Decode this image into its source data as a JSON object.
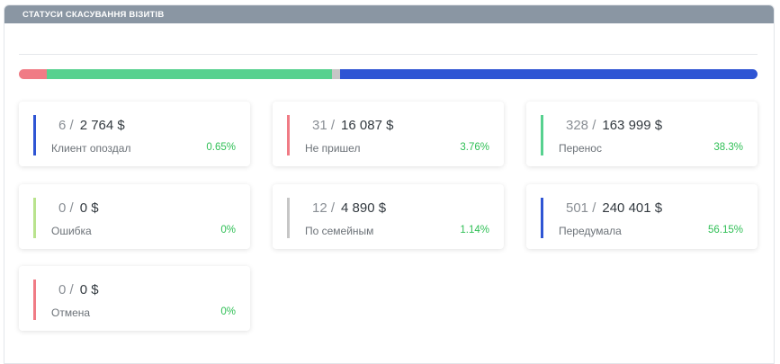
{
  "panel": {
    "title": "СТАТУСИ СКАСУВАННЯ ВІЗИТІВ"
  },
  "distribution_bar": [
    {
      "name": "Не пришел",
      "share": 3.76,
      "color": "#f07b85"
    },
    {
      "name": "Перенос",
      "share": 38.3,
      "color": "#57d18f"
    },
    {
      "name": "По семейным",
      "share": 1.14,
      "color": "#c6c6c6"
    },
    {
      "name": "Передумала",
      "share": 56.15,
      "color": "#2f55d4"
    },
    {
      "name": "Клиент опоздал",
      "share": 0.65,
      "color": "#2f55d4"
    }
  ],
  "cards": [
    {
      "count": "6 /",
      "amount": "2 764 $",
      "label": "Клиент опоздал",
      "pct": "0.65%",
      "color": "#2f55d4"
    },
    {
      "count": "31 /",
      "amount": "16 087 $",
      "label": "Не пришел",
      "pct": "3.76%",
      "color": "#f07b85"
    },
    {
      "count": "328 /",
      "amount": "163 999 $",
      "label": "Перенос",
      "pct": "38.3%",
      "color": "#57d18f"
    },
    {
      "count": "0 /",
      "amount": "0 $",
      "label": "Ошибка",
      "pct": "0%",
      "color": "#b9e38d"
    },
    {
      "count": "12 /",
      "amount": "4 890 $",
      "label": "По семейным",
      "pct": "1.14%",
      "color": "#c6c6c6"
    },
    {
      "count": "501 /",
      "amount": "240 401 $",
      "label": "Передумала",
      "pct": "56.15%",
      "color": "#2f55d4"
    },
    {
      "count": "0 /",
      "amount": "0 $",
      "label": "Отмена",
      "pct": "0%",
      "color": "#f07b85"
    }
  ]
}
